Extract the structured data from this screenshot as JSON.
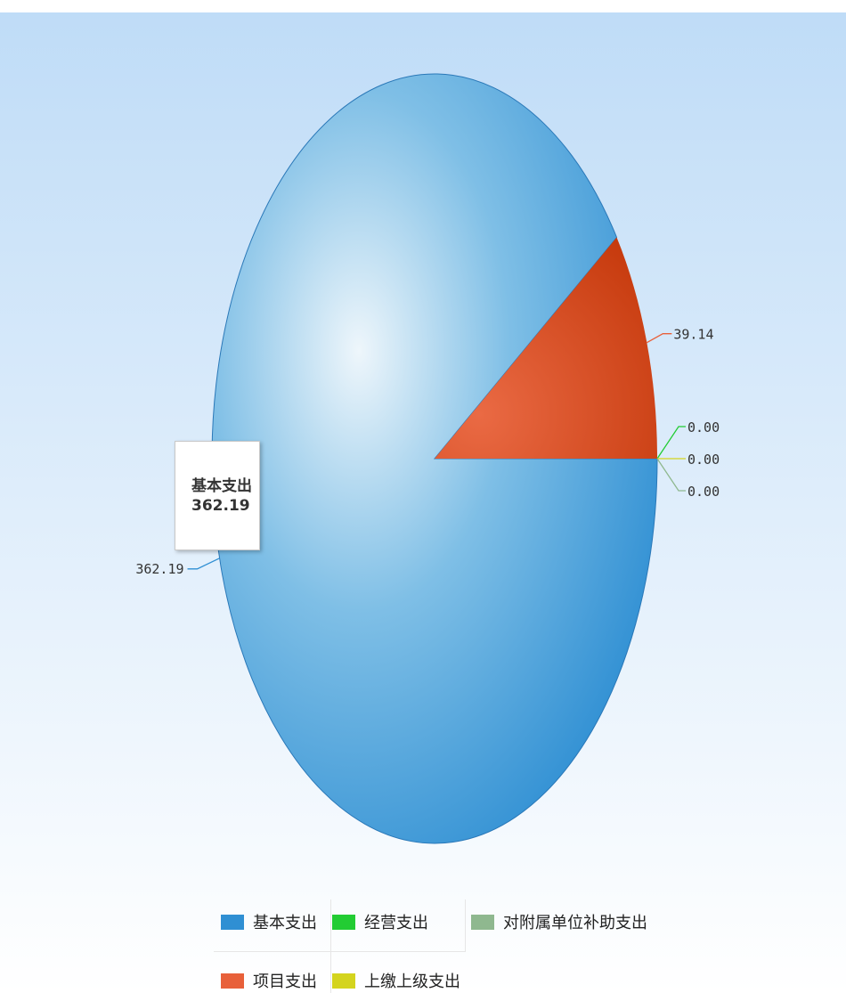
{
  "chart_data": {
    "type": "pie",
    "slices": [
      {
        "label": "基本支出",
        "value": 362.19,
        "value_label": "362.19",
        "color": "#2f8fd3"
      },
      {
        "label": "项目支出",
        "value": 39.14,
        "value_label": "39.14",
        "color": "#e8603a"
      },
      {
        "label": "经营支出",
        "value": 0.0,
        "value_label": "0.00",
        "color": "#22cc33"
      },
      {
        "label": "上缴上级支出",
        "value": 0.0,
        "value_label": "0.00",
        "color": "#d4d41e"
      },
      {
        "label": "对附属单位补助支出",
        "value": 0.0,
        "value_label": "0.00",
        "color": "#8fb88f"
      }
    ],
    "tooltip": {
      "label": "基本支出",
      "value": "362.19"
    },
    "legend_placement": "bottom"
  },
  "colors": {
    "background_top": "#bfdcf7",
    "background_bottom": "#ffffff"
  }
}
